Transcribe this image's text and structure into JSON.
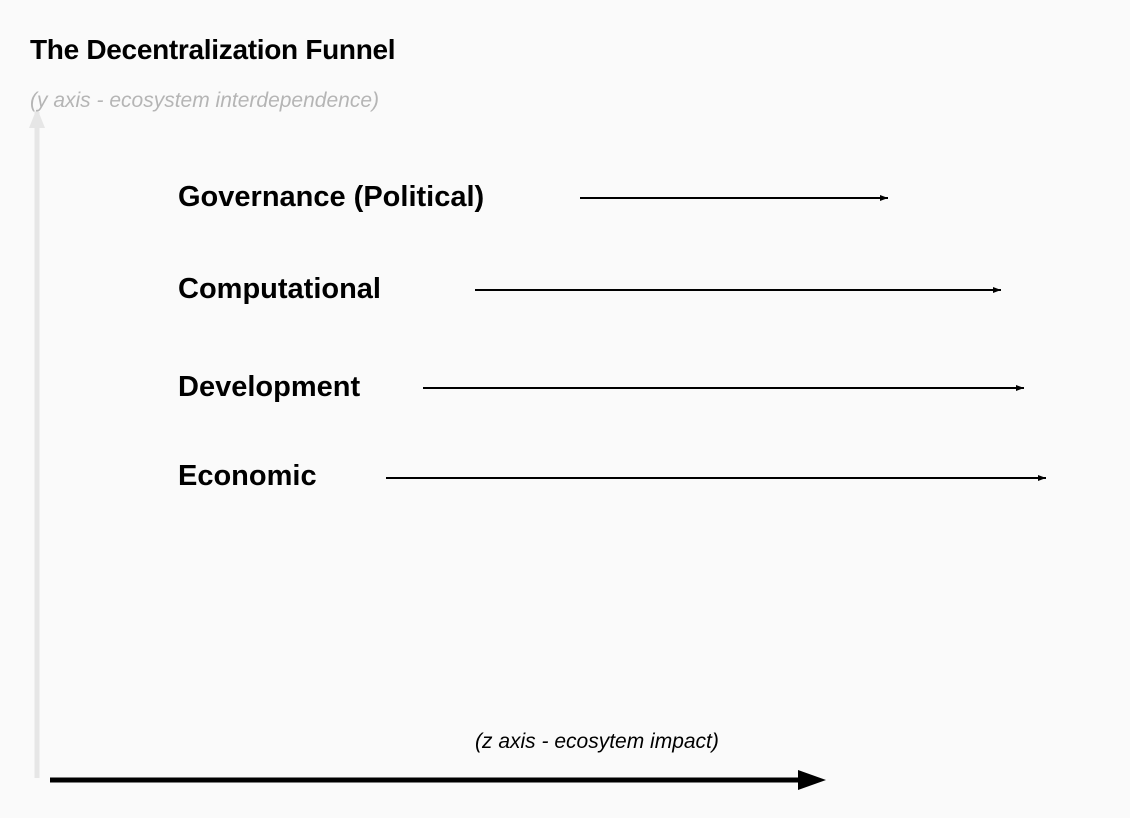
{
  "title": "The Decentralization Funnel",
  "y_axis_label": "(y axis - ecosystem interdependence)",
  "z_axis_label": "(z axis -  ecosytem impact)",
  "colors": {
    "background": "#fafafa",
    "y_axis": "#e6e6e6",
    "text": "#000000",
    "muted_text": "#b5b5b5"
  },
  "rows": [
    {
      "label": "Governance (Political)"
    },
    {
      "label": "Computational"
    },
    {
      "label": "Development"
    },
    {
      "label": "Economic"
    }
  ]
}
